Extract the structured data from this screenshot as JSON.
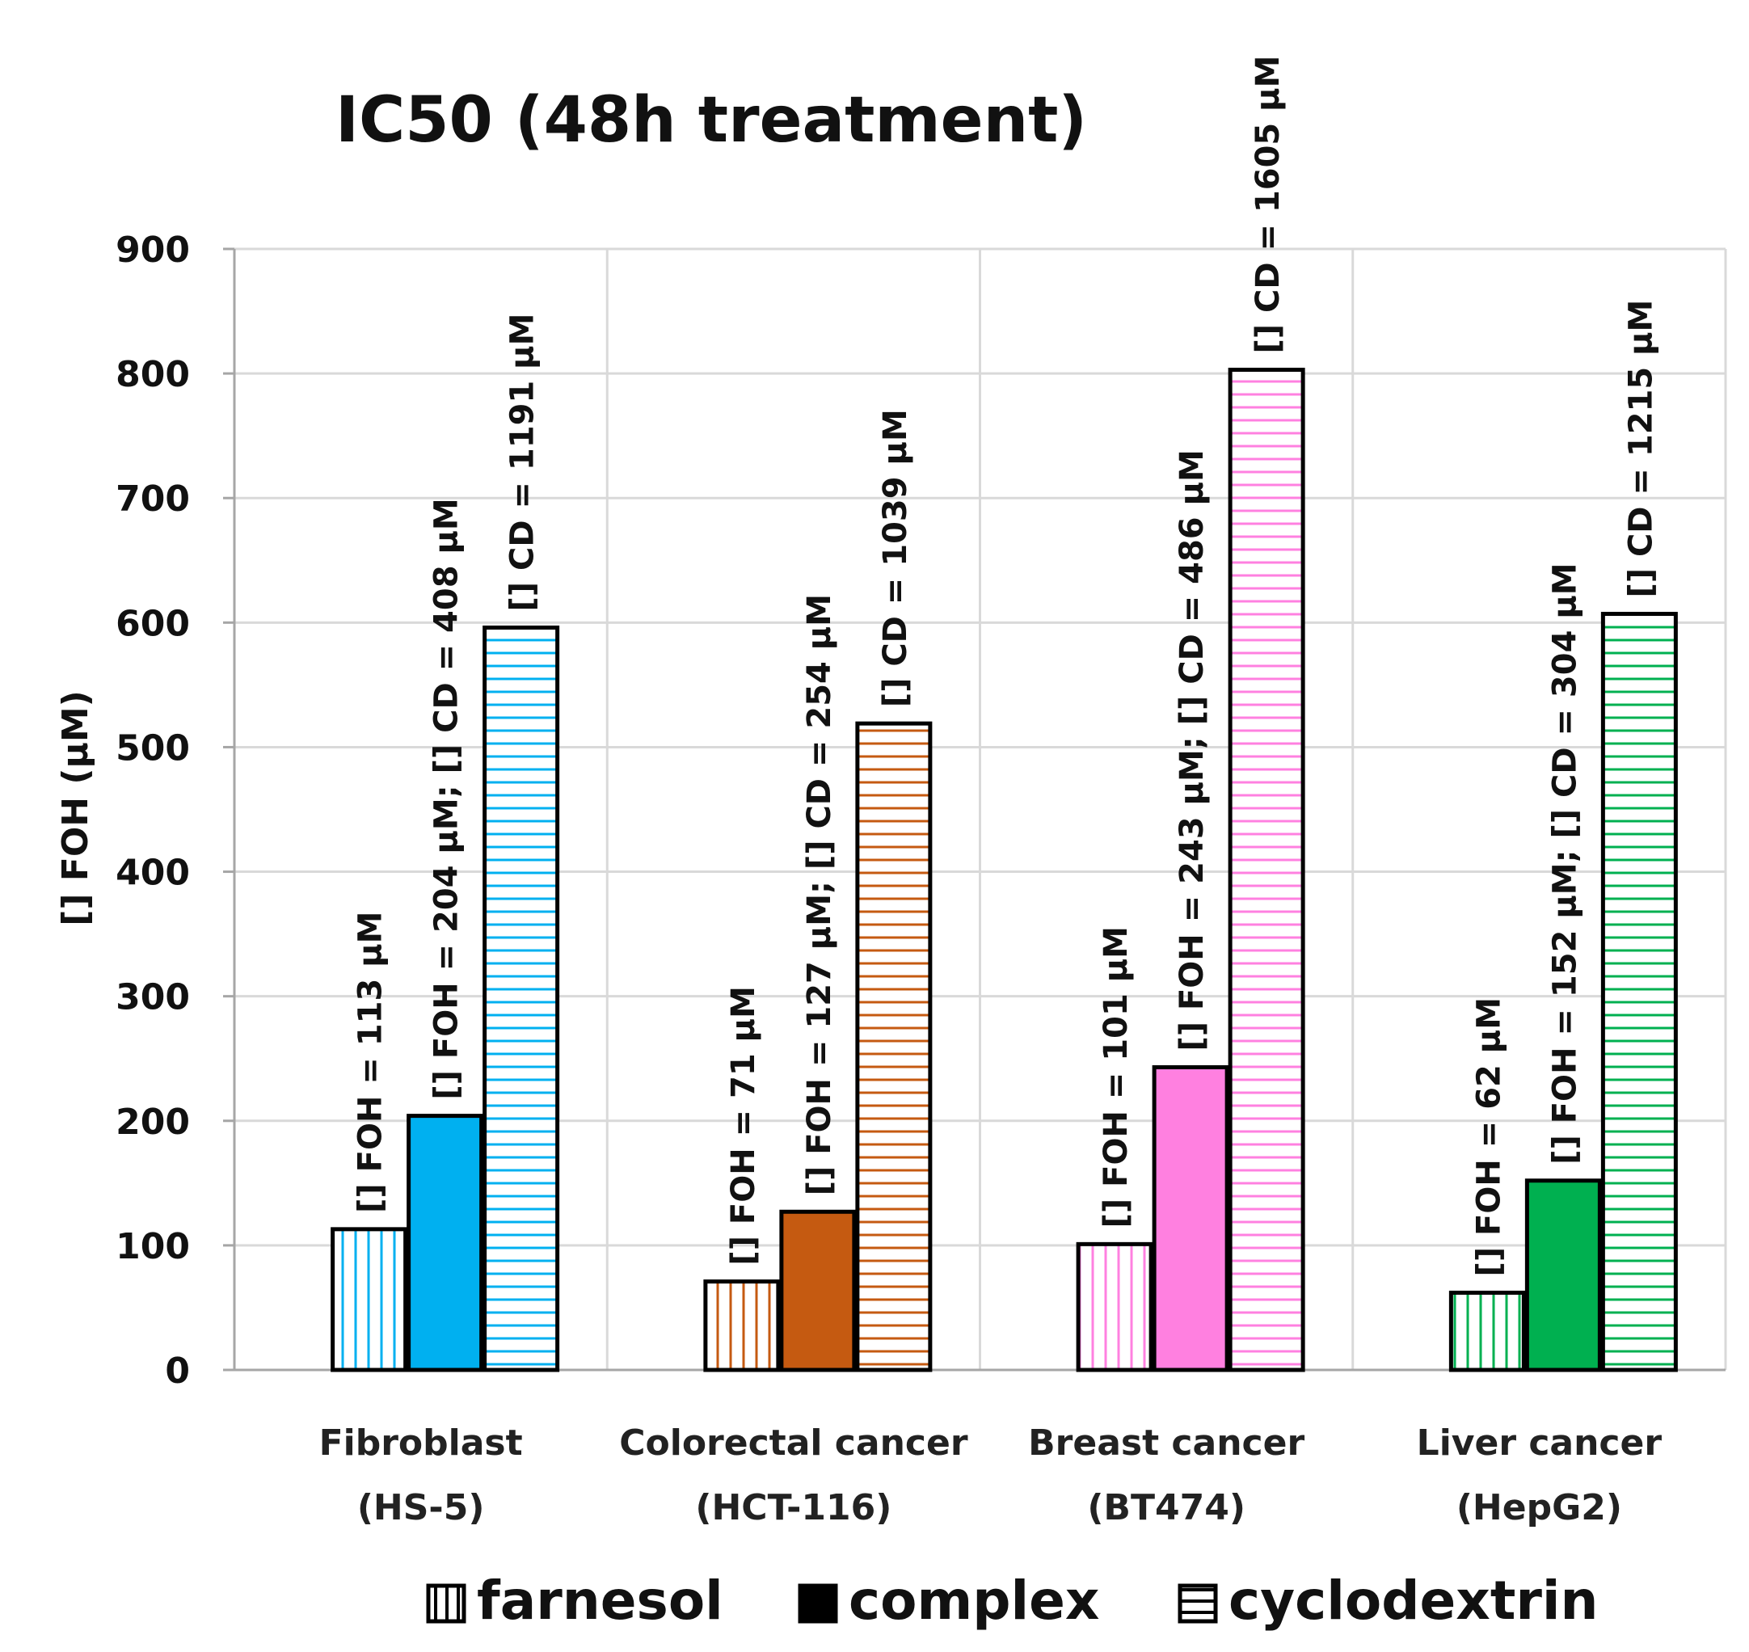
{
  "chart_data": {
    "type": "bar",
    "title": "IC50 (48h treatment)",
    "ylabel": "[] FOH (μM)",
    "xlabel": "",
    "ylim": [
      0,
      900
    ],
    "yticks": [
      0,
      100,
      200,
      300,
      400,
      500,
      600,
      700,
      800,
      900
    ],
    "grid": true,
    "legend_position": "bottom",
    "categories": [
      {
        "line1": "Fibroblast",
        "line2": "(HS-5)",
        "color": "#00B0F0"
      },
      {
        "line1": "Colorectal cancer",
        "line2": "(HCT-116)",
        "color": "#C55A11"
      },
      {
        "line1": "Breast cancer",
        "line2": "(BT474)",
        "color": "#FF80E0"
      },
      {
        "line1": "Liver cancer",
        "line2": "(HepG2)",
        "color": "#00B050"
      }
    ],
    "series": [
      {
        "name": "farnesol",
        "pattern": "vertical",
        "values": [
          113,
          71,
          101,
          62
        ],
        "labels": [
          "[] FOH = 113 μM",
          "[] FOH = 71 μM",
          "[] FOH = 101 μM",
          "[] FOH = 62 μM"
        ]
      },
      {
        "name": "complex",
        "pattern": "solid",
        "values": [
          204,
          127,
          243,
          152
        ],
        "labels": [
          "[] FOH = 204 μM; [] CD = 408 μM",
          "[] FOH = 127 μM; [] CD = 254 μM",
          "[] FOH = 243 μM; [] CD = 486 μM",
          "[] FOH = 152 μM; [] CD = 304 μM"
        ]
      },
      {
        "name": "cyclodextrin",
        "pattern": "horizontal",
        "values": [
          596,
          519,
          803,
          607
        ],
        "labels": [
          "[] CD = 1191 μM",
          "[] CD = 1039 μM",
          "[] CD = 1605 μM",
          "[] CD = 1215 μM"
        ]
      }
    ]
  }
}
